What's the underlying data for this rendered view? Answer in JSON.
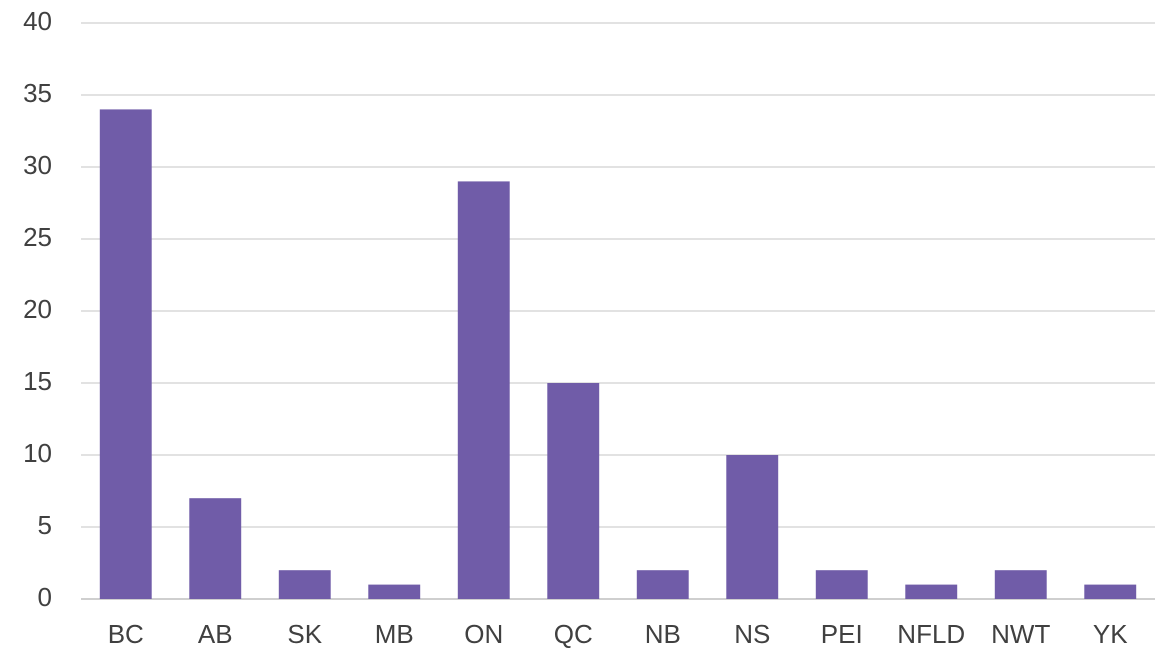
{
  "chart_data": {
    "type": "bar",
    "categories": [
      "BC",
      "AB",
      "SK",
      "MB",
      "ON",
      "QC",
      "NB",
      "NS",
      "PEI",
      "NFLD",
      "NWT",
      "YK"
    ],
    "values": [
      34,
      7,
      2,
      1,
      29,
      15,
      2,
      10,
      2,
      1,
      2,
      1
    ],
    "color": "#705ca8",
    "ylim": [
      0,
      40
    ],
    "yticks": [
      0,
      5,
      10,
      15,
      20,
      25,
      30,
      35,
      40
    ],
    "grid": true
  }
}
